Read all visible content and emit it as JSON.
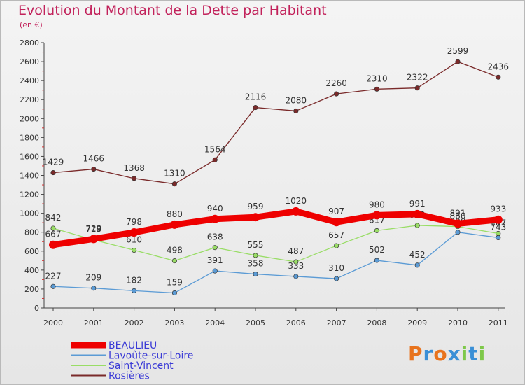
{
  "title": "Evolution du Montant de la Dette par Habitant",
  "unit_label": "(en €)",
  "logo_text": "Proxiti",
  "chart_data": {
    "type": "line",
    "title": "Evolution du Montant de la Dette par Habitant",
    "ylabel": "(en €)",
    "xlabel": "",
    "categories": [
      "2000",
      "2001",
      "2002",
      "2003",
      "2004",
      "2005",
      "2006",
      "2007",
      "2008",
      "2009",
      "2010",
      "2011"
    ],
    "ylim": [
      0,
      2800
    ],
    "yticks": [
      0,
      200,
      400,
      600,
      800,
      1000,
      1200,
      1400,
      1600,
      1800,
      2000,
      2200,
      2400,
      2600,
      2800
    ],
    "grid": false,
    "legend": "bottom-left",
    "series": [
      {
        "name": "BEAULIEU",
        "color": "#ee0000",
        "values": [
          667,
          729,
          798,
          880,
          940,
          959,
          1020,
          907,
          980,
          991,
          891,
          933
        ]
      },
      {
        "name": "Lavoûte-sur-Loire",
        "color": "#5b9bd5",
        "values": [
          227,
          209,
          182,
          159,
          391,
          358,
          333,
          310,
          502,
          452,
          800,
          743
        ]
      },
      {
        "name": "Saint-Vincent",
        "color": "#99dd66",
        "values": [
          842,
          719,
          610,
          498,
          638,
          555,
          487,
          657,
          817,
          872,
          860,
          787
        ]
      },
      {
        "name": "Rosières",
        "color": "#7a2a2a",
        "values": [
          1429,
          1466,
          1368,
          1310,
          1564,
          2116,
          2080,
          2260,
          2310,
          2322,
          2599,
          2436
        ]
      }
    ]
  }
}
